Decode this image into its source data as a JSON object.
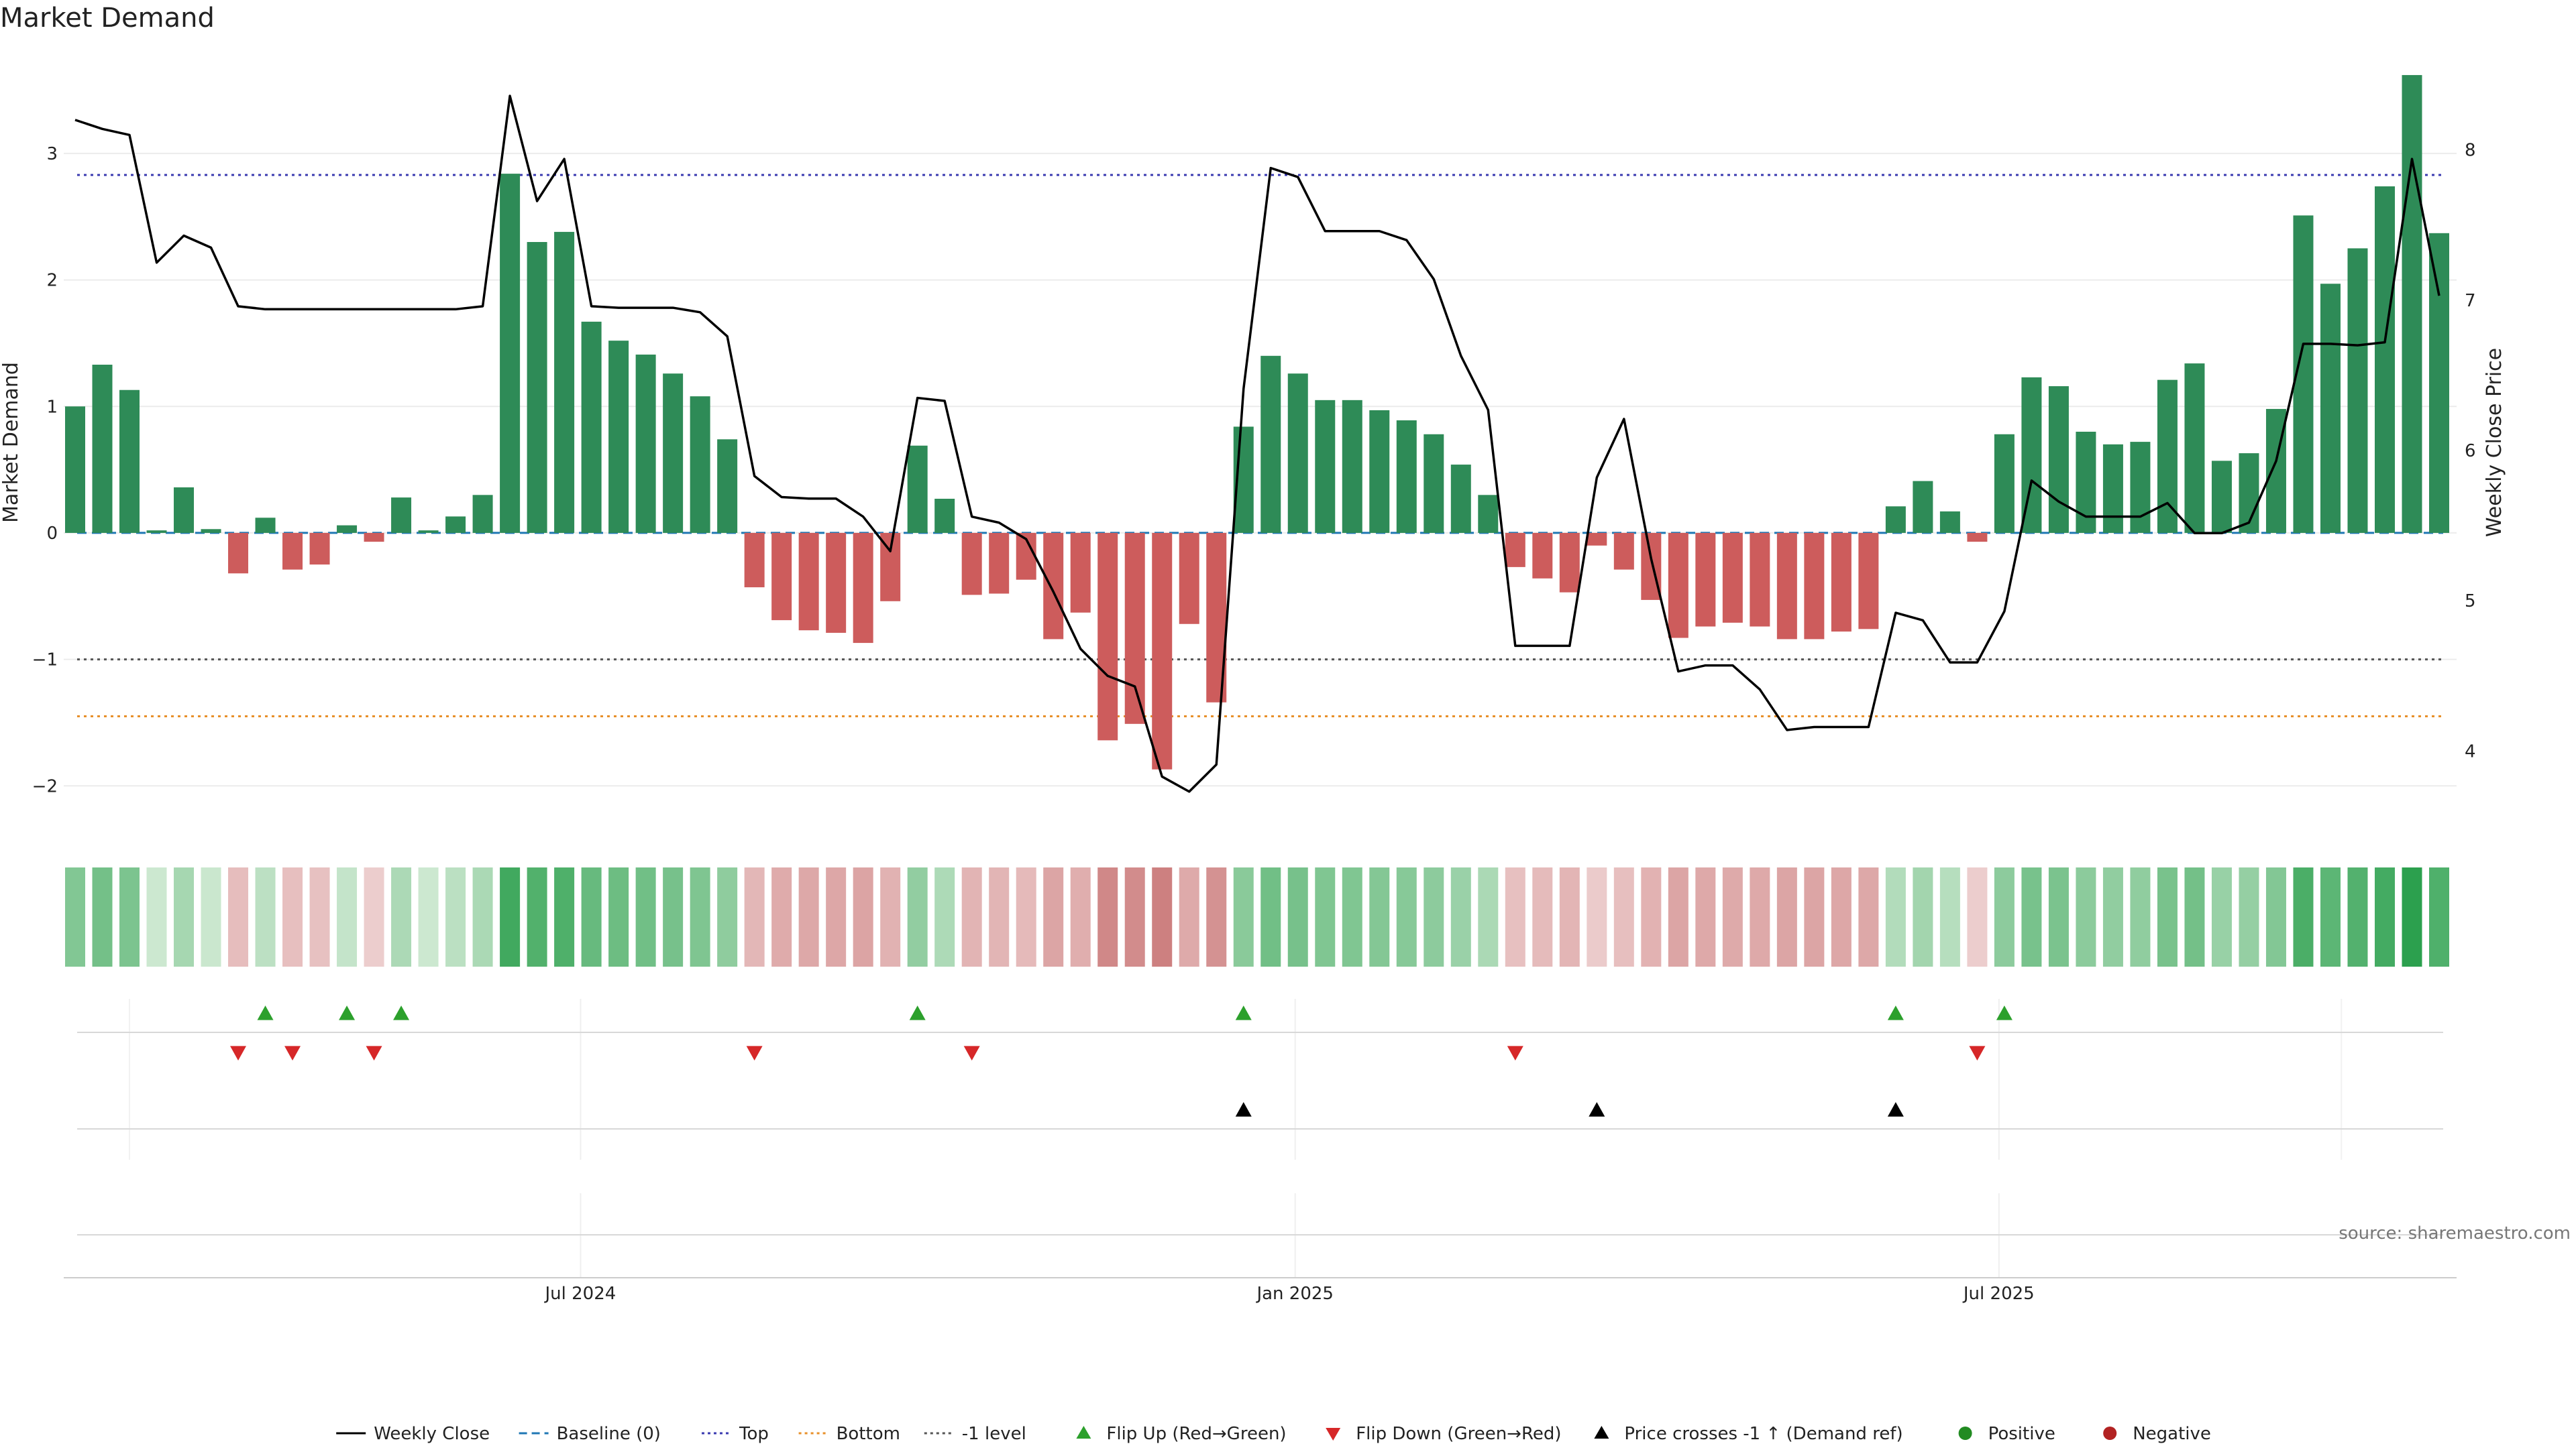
{
  "chart_data": {
    "type": "bar",
    "title": "Market Demand",
    "ylabel": "Market Demand",
    "y2label": "Weekly Close Price",
    "ylim": [
      -2.2,
      3.8
    ],
    "y2lim": [
      3.6,
      8.65
    ],
    "yticks": [
      -2,
      -1,
      0,
      1,
      2,
      3
    ],
    "yticklabels": [
      "−2",
      "−1",
      "0",
      "1",
      "2",
      "3"
    ],
    "y2ticks": [
      4,
      5,
      6,
      7,
      8
    ],
    "y2ticklabels": [
      "4",
      "5",
      "6",
      "7",
      "8"
    ],
    "xticklabels": [
      {
        "label": "Jul 2024",
        "week": 18.6
      },
      {
        "label": "Jan 2025",
        "week": 44.9
      },
      {
        "label": "Jul 2025",
        "week": 70.8
      }
    ],
    "weeks": 88,
    "demand": [
      1.0,
      1.33,
      1.13,
      0.02,
      0.36,
      0.03,
      -0.32,
      0.12,
      -0.29,
      -0.25,
      0.06,
      -0.07,
      0.28,
      0.02,
      0.13,
      0.3,
      2.84,
      2.3,
      2.38,
      1.67,
      1.52,
      1.41,
      1.26,
      1.08,
      0.74,
      -0.43,
      -0.69,
      -0.77,
      -0.79,
      -0.87,
      -0.54,
      0.69,
      0.27,
      -0.49,
      -0.48,
      -0.37,
      -0.84,
      -0.63,
      -1.64,
      -1.51,
      -1.87,
      -0.72,
      -1.34,
      0.84,
      1.4,
      1.26,
      1.05,
      1.05,
      0.97,
      0.89,
      0.78,
      0.54,
      0.3,
      -0.27,
      -0.36,
      -0.47,
      -0.1,
      -0.29,
      -0.53,
      -0.83,
      -0.74,
      -0.71,
      -0.74,
      -0.84,
      -0.84,
      -0.78,
      -0.76,
      0.21,
      0.41,
      0.17,
      -0.07,
      0.78,
      1.23,
      1.16,
      0.8,
      0.7,
      0.72,
      1.21,
      1.34,
      0.57,
      0.63,
      0.98,
      2.51,
      1.97,
      2.25,
      2.74,
      3.62,
      2.37
    ],
    "weekly_close": [
      8.2,
      8.14,
      8.1,
      7.25,
      7.43,
      7.35,
      6.96,
      6.94,
      6.94,
      6.94,
      6.94,
      6.94,
      6.94,
      6.94,
      6.94,
      6.96,
      8.36,
      7.66,
      7.94,
      6.96,
      6.95,
      6.95,
      6.95,
      6.92,
      6.76,
      5.83,
      5.69,
      5.68,
      5.68,
      5.56,
      5.33,
      6.35,
      6.33,
      5.56,
      5.52,
      5.41,
      5.06,
      4.68,
      4.5,
      4.43,
      3.83,
      3.73,
      3.91,
      6.41,
      7.88,
      7.82,
      7.46,
      7.46,
      7.46,
      7.4,
      7.14,
      6.63,
      6.27,
      4.7,
      4.7,
      4.7,
      5.82,
      6.21,
      5.28,
      4.53,
      4.57,
      4.57,
      4.41,
      4.14,
      4.16,
      4.16,
      4.16,
      4.92,
      4.87,
      4.59,
      4.59,
      4.93,
      5.8,
      5.66,
      5.56,
      5.56,
      5.56,
      5.65,
      5.45,
      5.45,
      5.52,
      5.93,
      6.71,
      6.71,
      6.7,
      6.72,
      7.94,
      7.03
    ],
    "reference_lines": [
      {
        "name": "Baseline (0)",
        "value": 0,
        "style": "dashed",
        "color": "#1f77b4"
      },
      {
        "name": "Top",
        "value": 2.83,
        "style": "dotted",
        "color": "#3a3ab0"
      },
      {
        "name": "Bottom",
        "value": -1.45,
        "style": "dotted",
        "color": "#e8902a"
      },
      {
        "name": "-1 level",
        "value": -1,
        "style": "dotted",
        "color": "#555555"
      }
    ],
    "flip_up_weeks": [
      7,
      10,
      12,
      31,
      43,
      67,
      71
    ],
    "flip_down_weeks": [
      6,
      8,
      11,
      25,
      33,
      53,
      70
    ],
    "price_cross_weeks": [
      43,
      56,
      67
    ],
    "legend": [
      {
        "label": "Weekly Close",
        "kind": "line-solid",
        "color": "#000000"
      },
      {
        "label": "Baseline (0)",
        "kind": "line-dashed",
        "color": "#1f77b4"
      },
      {
        "label": "Top",
        "kind": "line-dotted",
        "color": "#3a3ab0"
      },
      {
        "label": "Bottom",
        "kind": "line-dotted",
        "color": "#e8902a"
      },
      {
        "label": "-1 level",
        "kind": "line-dotted",
        "color": "#555555"
      },
      {
        "label": "Flip Up (Red→Green)",
        "kind": "tri-up",
        "color": "#2ca02c"
      },
      {
        "label": "Flip Down (Green→Red)",
        "kind": "tri-down",
        "color": "#d62728"
      },
      {
        "label": "Price crosses -1 ↑ (Demand ref)",
        "kind": "tri-up",
        "color": "#000000"
      },
      {
        "label": "Positive",
        "kind": "dot",
        "color": "#228b22"
      },
      {
        "label": "Negative",
        "kind": "dot",
        "color": "#b22222"
      }
    ],
    "legend_position": "bottom-center",
    "grid": true
  },
  "colors": {
    "positive_bar": "#2e8b57",
    "negative_bar": "#cd5c5c",
    "price_line": "#000000"
  },
  "source": "source: sharemaestro.com"
}
